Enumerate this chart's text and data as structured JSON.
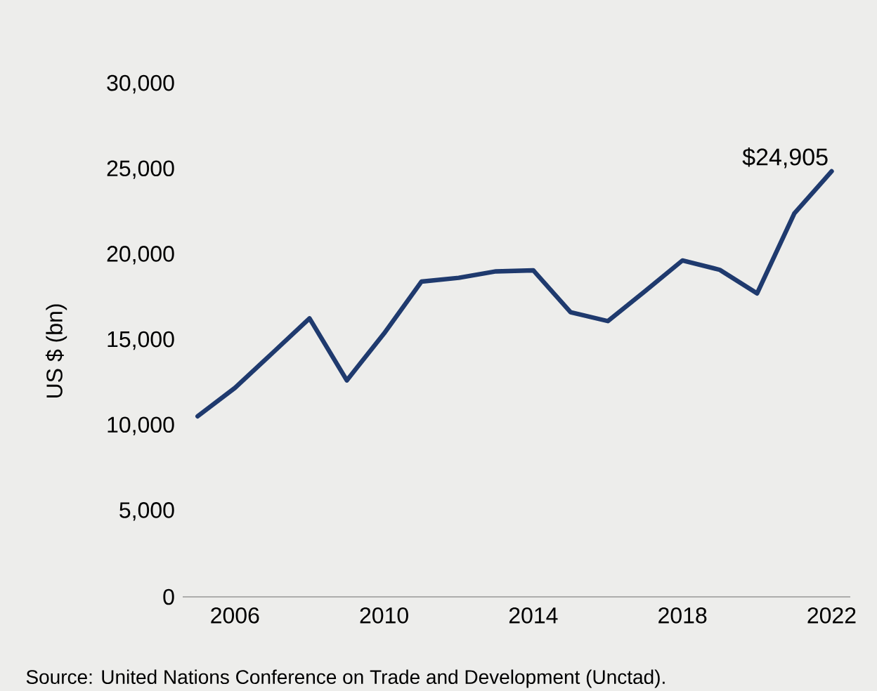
{
  "chart_data": {
    "type": "line",
    "ylabel": "US $ (bn)",
    "x": [
      2005,
      2006,
      2007,
      2008,
      2009,
      2010,
      2011,
      2012,
      2013,
      2014,
      2015,
      2016,
      2017,
      2018,
      2019,
      2020,
      2021,
      2022
    ],
    "series": [
      {
        "color": "#1f3a6e",
        "values": [
          10570,
          12230,
          14260,
          16300,
          12670,
          15420,
          18450,
          18670,
          19050,
          19110,
          16660,
          16140,
          17900,
          19690,
          19140,
          17760,
          22440,
          24905
        ]
      }
    ],
    "xlim": [
      2004.6,
      2022.5
    ],
    "xticks": [
      2006,
      2010,
      2014,
      2018,
      2022
    ],
    "ylim": [
      0,
      30000
    ],
    "yticks": [
      {
        "value": 0,
        "label": "0"
      },
      {
        "value": 5000,
        "label": "5,000"
      },
      {
        "value": 10000,
        "label": "10,000"
      },
      {
        "value": 15000,
        "label": "15,000"
      },
      {
        "value": 20000,
        "label": "20,000"
      },
      {
        "value": 25000,
        "label": "25,000"
      },
      {
        "value": 30000,
        "label": "30,000"
      }
    ],
    "grid": false,
    "marker": "none",
    "line_style": "solid",
    "annotations": [
      {
        "text": "$24,905",
        "x": 2022,
        "y": 24905
      },
      "Source: United Nations Conference on Trade and Development (Unctad)."
    ]
  }
}
